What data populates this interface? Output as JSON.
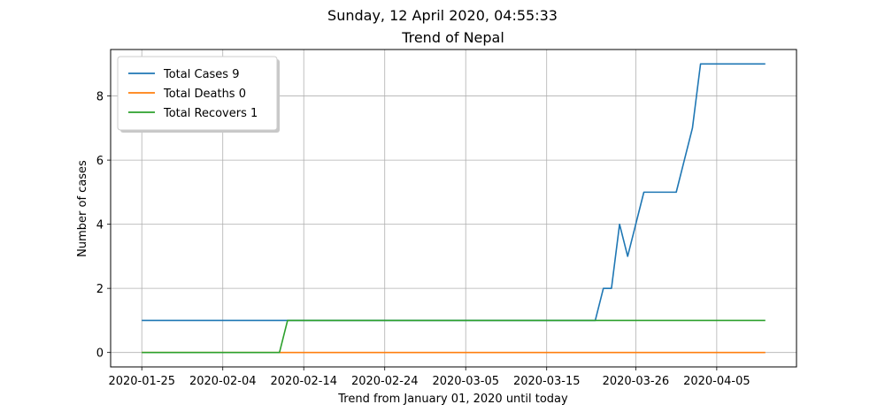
{
  "suptitle": "Sunday, 12 April 2020, 04:55:33",
  "chart_data": {
    "type": "line",
    "title": "Trend of Nepal",
    "xlabel": "Trend from January 01, 2020 until today",
    "ylabel": "Number of cases",
    "x_start": "2020-01-25",
    "x": [
      "2020-01-25",
      "2020-01-26",
      "2020-01-27",
      "2020-01-28",
      "2020-01-29",
      "2020-01-30",
      "2020-01-31",
      "2020-02-01",
      "2020-02-02",
      "2020-02-03",
      "2020-02-04",
      "2020-02-05",
      "2020-02-06",
      "2020-02-07",
      "2020-02-08",
      "2020-02-09",
      "2020-02-10",
      "2020-02-11",
      "2020-02-12",
      "2020-02-13",
      "2020-02-14",
      "2020-02-15",
      "2020-02-16",
      "2020-02-17",
      "2020-02-18",
      "2020-02-19",
      "2020-02-20",
      "2020-02-21",
      "2020-02-22",
      "2020-02-23",
      "2020-02-24",
      "2020-02-25",
      "2020-02-26",
      "2020-02-27",
      "2020-02-28",
      "2020-02-29",
      "2020-03-01",
      "2020-03-02",
      "2020-03-03",
      "2020-03-04",
      "2020-03-05",
      "2020-03-06",
      "2020-03-07",
      "2020-03-08",
      "2020-03-09",
      "2020-03-10",
      "2020-03-11",
      "2020-03-12",
      "2020-03-13",
      "2020-03-14",
      "2020-03-15",
      "2020-03-16",
      "2020-03-17",
      "2020-03-18",
      "2020-03-19",
      "2020-03-20",
      "2020-03-21",
      "2020-03-22",
      "2020-03-23",
      "2020-03-24",
      "2020-03-25",
      "2020-03-26",
      "2020-03-27",
      "2020-03-28",
      "2020-03-29",
      "2020-03-30",
      "2020-03-31",
      "2020-04-01",
      "2020-04-02",
      "2020-04-03",
      "2020-04-04",
      "2020-04-05",
      "2020-04-06",
      "2020-04-07",
      "2020-04-08",
      "2020-04-09",
      "2020-04-10",
      "2020-04-11"
    ],
    "series": [
      {
        "name": "Total Cases 9",
        "color": "#1f77b4",
        "values": [
          1,
          1,
          1,
          1,
          1,
          1,
          1,
          1,
          1,
          1,
          1,
          1,
          1,
          1,
          1,
          1,
          1,
          1,
          1,
          1,
          1,
          1,
          1,
          1,
          1,
          1,
          1,
          1,
          1,
          1,
          1,
          1,
          1,
          1,
          1,
          1,
          1,
          1,
          1,
          1,
          1,
          1,
          1,
          1,
          1,
          1,
          1,
          1,
          1,
          1,
          1,
          1,
          1,
          1,
          1,
          1,
          1,
          2,
          2,
          4,
          3,
          4,
          5,
          5,
          5,
          5,
          5,
          6,
          7,
          9,
          9,
          9,
          9,
          9,
          9,
          9,
          9,
          9
        ]
      },
      {
        "name": "Total Deaths 0",
        "color": "#ff7f0e",
        "values": [
          0,
          0,
          0,
          0,
          0,
          0,
          0,
          0,
          0,
          0,
          0,
          0,
          0,
          0,
          0,
          0,
          0,
          0,
          0,
          0,
          0,
          0,
          0,
          0,
          0,
          0,
          0,
          0,
          0,
          0,
          0,
          0,
          0,
          0,
          0,
          0,
          0,
          0,
          0,
          0,
          0,
          0,
          0,
          0,
          0,
          0,
          0,
          0,
          0,
          0,
          0,
          0,
          0,
          0,
          0,
          0,
          0,
          0,
          0,
          0,
          0,
          0,
          0,
          0,
          0,
          0,
          0,
          0,
          0,
          0,
          0,
          0,
          0,
          0,
          0,
          0,
          0,
          0
        ]
      },
      {
        "name": "Total Recovers 1",
        "color": "#2ca02c",
        "values": [
          0,
          0,
          0,
          0,
          0,
          0,
          0,
          0,
          0,
          0,
          0,
          0,
          0,
          0,
          0,
          0,
          0,
          0,
          1,
          1,
          1,
          1,
          1,
          1,
          1,
          1,
          1,
          1,
          1,
          1,
          1,
          1,
          1,
          1,
          1,
          1,
          1,
          1,
          1,
          1,
          1,
          1,
          1,
          1,
          1,
          1,
          1,
          1,
          1,
          1,
          1,
          1,
          1,
          1,
          1,
          1,
          1,
          1,
          1,
          1,
          1,
          1,
          1,
          1,
          1,
          1,
          1,
          1,
          1,
          1,
          1,
          1,
          1,
          1,
          1,
          1,
          1,
          1
        ]
      }
    ],
    "x_ticks": [
      "2020-01-25",
      "2020-02-04",
      "2020-02-14",
      "2020-02-24",
      "2020-03-05",
      "2020-03-15",
      "2020-03-26",
      "2020-04-05"
    ],
    "y_ticks": [
      0,
      2,
      4,
      6,
      8
    ],
    "ylim": [
      -0.45,
      9.45
    ],
    "grid": true,
    "legend_position": "top-left"
  }
}
